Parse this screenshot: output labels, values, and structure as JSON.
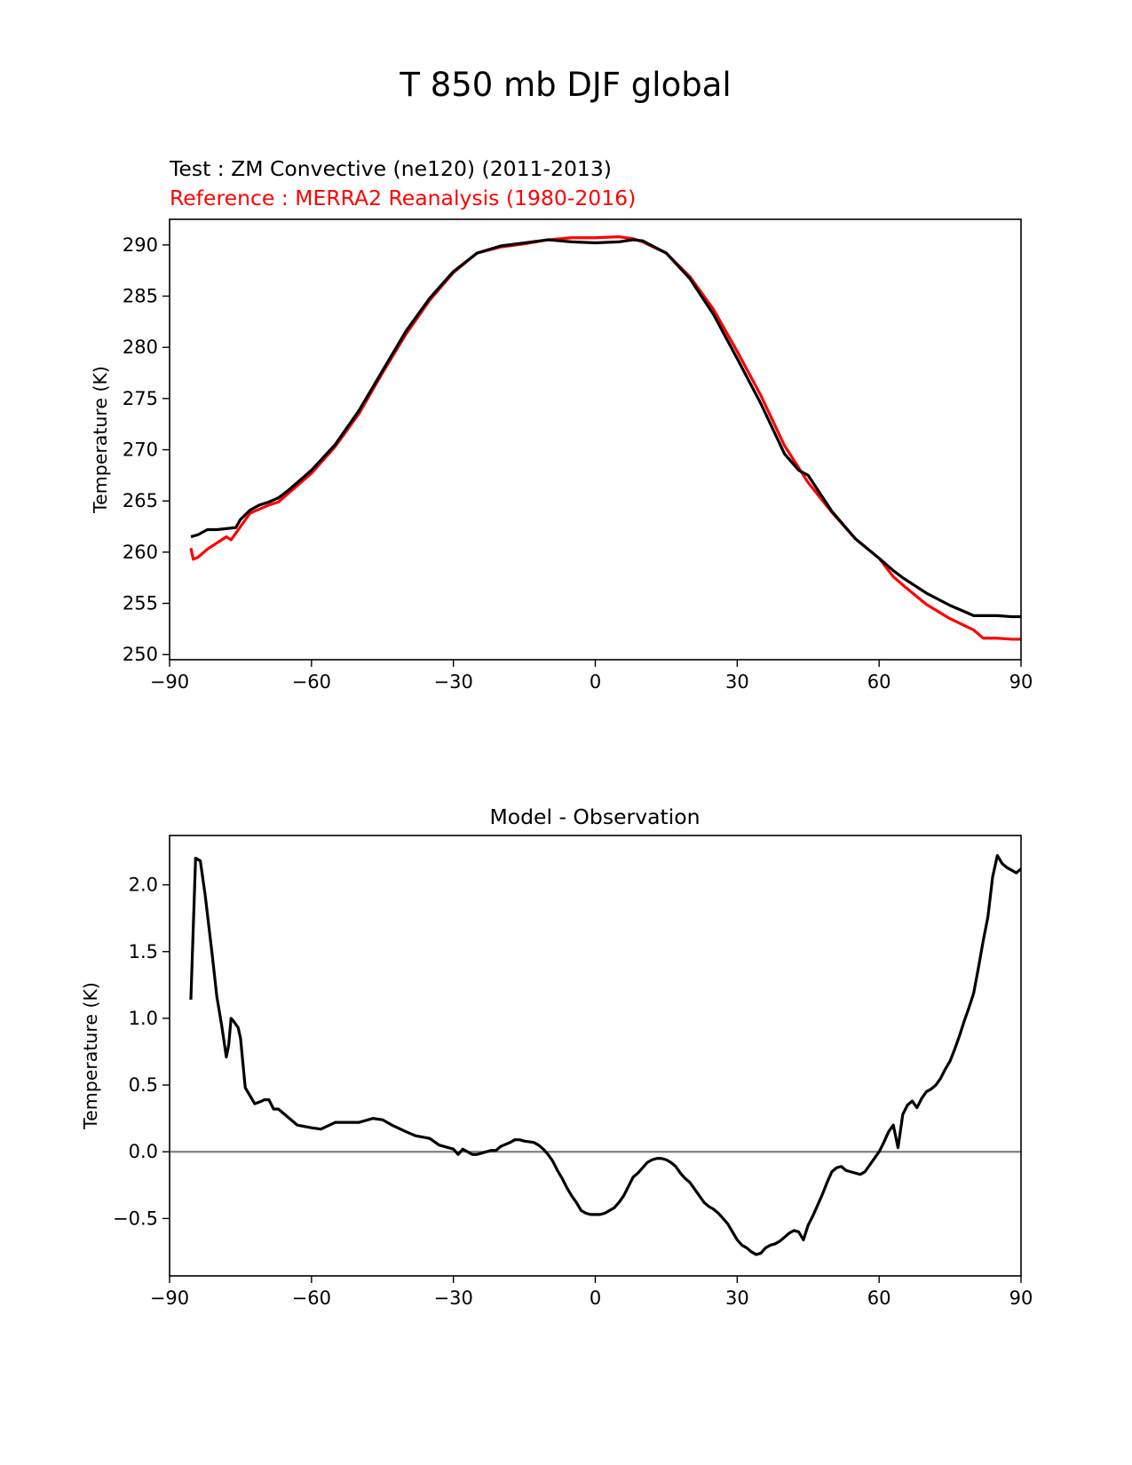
{
  "figure": {
    "suptitle": "T 850 mb DJF global"
  },
  "chart_data": [
    {
      "type": "line",
      "title_test": "Test : ZM Convective (ne120) (2011-2013)",
      "title_reference": "Reference : MERRA2 Reanalysis (1980-2016)",
      "xlabel": "",
      "ylabel": "Temperature (K)",
      "xlim": [
        -90,
        90
      ],
      "ylim": [
        249.5,
        292.5
      ],
      "xticks": [
        -90,
        -60,
        -30,
        0,
        30,
        60,
        90
      ],
      "xtick_labels": [
        "−90",
        "−60",
        "−30",
        "0",
        "30",
        "60",
        "90"
      ],
      "yticks": [
        250,
        255,
        260,
        265,
        270,
        275,
        280,
        285,
        290
      ],
      "ytick_labels": [
        "250",
        "255",
        "260",
        "265",
        "270",
        "275",
        "280",
        "285",
        "290"
      ],
      "series": [
        {
          "name": "Test",
          "color": "#000000",
          "x": [
            -85.5,
            -84,
            -82,
            -80,
            -78,
            -76,
            -75,
            -73,
            -71,
            -69,
            -67,
            -65,
            -60,
            -55,
            -50,
            -45,
            -40,
            -35,
            -30,
            -25,
            -20,
            -15,
            -10,
            -5,
            0,
            5,
            8,
            10,
            15,
            20,
            25,
            30,
            35,
            40,
            43,
            45,
            50,
            55,
            60,
            63,
            65,
            70,
            75,
            80,
            82,
            85,
            88,
            90
          ],
          "y": [
            261.5,
            261.7,
            262.2,
            262.2,
            262.3,
            262.4,
            263.2,
            264.1,
            264.6,
            264.9,
            265.3,
            266.0,
            268.0,
            270.5,
            273.8,
            277.7,
            281.6,
            284.8,
            287.4,
            289.2,
            289.9,
            290.2,
            290.5,
            290.3,
            290.2,
            290.3,
            290.5,
            290.4,
            289.2,
            286.7,
            283.2,
            278.9,
            274.5,
            269.6,
            268.0,
            267.5,
            264.0,
            261.3,
            259.4,
            258.2,
            257.5,
            256.0,
            254.8,
            253.8,
            253.8,
            253.8,
            253.7,
            253.7
          ]
        },
        {
          "name": "Reference",
          "color": "#ff0000",
          "x": [
            -85.5,
            -85,
            -84,
            -82,
            -80,
            -78,
            -77,
            -75,
            -73,
            -71,
            -69,
            -67,
            -65,
            -60,
            -55,
            -50,
            -45,
            -40,
            -35,
            -30,
            -25,
            -20,
            -15,
            -10,
            -5,
            0,
            5,
            8,
            10,
            15,
            20,
            25,
            30,
            35,
            40,
            45,
            50,
            55,
            60,
            63,
            65,
            70,
            75,
            80,
            82,
            85,
            88,
            90
          ],
          "y": [
            260.4,
            259.3,
            259.5,
            260.3,
            260.9,
            261.5,
            261.2,
            262.5,
            263.8,
            264.2,
            264.6,
            264.9,
            265.7,
            267.7,
            270.3,
            273.5,
            277.5,
            281.3,
            284.6,
            287.3,
            289.2,
            289.8,
            290.1,
            290.5,
            290.7,
            290.7,
            290.8,
            290.6,
            290.3,
            289.2,
            286.9,
            283.7,
            279.6,
            275.3,
            270.4,
            266.8,
            263.9,
            261.3,
            259.4,
            257.6,
            256.8,
            254.9,
            253.5,
            252.4,
            251.6,
            251.6,
            251.5,
            251.5
          ]
        }
      ]
    },
    {
      "type": "line",
      "title": "Model - Observation",
      "xlabel": "",
      "ylabel": "Temperature (K)",
      "xlim": [
        -90,
        90
      ],
      "ylim": [
        -0.93,
        2.37
      ],
      "xticks": [
        -90,
        -60,
        -30,
        0,
        30,
        60,
        90
      ],
      "xtick_labels": [
        "−90",
        "−60",
        "−30",
        "0",
        "30",
        "60",
        "90"
      ],
      "yticks": [
        -0.5,
        0.0,
        0.5,
        1.0,
        1.5,
        2.0
      ],
      "ytick_labels": [
        "−0.5",
        "0.0",
        "0.5",
        "1.0",
        "1.5",
        "2.0"
      ],
      "zero_line": {
        "y": 0,
        "color": "#808080"
      },
      "series": [
        {
          "name": "Model - Observation",
          "color": "#000000",
          "x": [
            -85.5,
            -84.5,
            -83.5,
            -82.5,
            -81,
            -80,
            -79,
            -78,
            -77.5,
            -77,
            -76.5,
            -75.5,
            -75,
            -74,
            -72,
            -70.5,
            -70,
            -69,
            -68,
            -67,
            -65,
            -63,
            -60,
            -58,
            -55,
            -53,
            -50,
            -47,
            -45,
            -43,
            -40,
            -38,
            -35,
            -33,
            -31,
            -30,
            -29,
            -28,
            -27,
            -26,
            -25,
            -23,
            -22,
            -21,
            -20,
            -18,
            -17,
            -16,
            -15,
            -13,
            -12,
            -11,
            -10,
            -9,
            -8,
            -7,
            -6,
            -5,
            -4,
            -3,
            -2,
            -1,
            0,
            1,
            2,
            3,
            4,
            5,
            6,
            7,
            8,
            9,
            10,
            11,
            12,
            13,
            14,
            15,
            16,
            17,
            18,
            19,
            20,
            21,
            22,
            23,
            24,
            25,
            26,
            27,
            28,
            29,
            30,
            31,
            32,
            33,
            34,
            35,
            36,
            37,
            38,
            39,
            40,
            41,
            42,
            43,
            44,
            45,
            46,
            47,
            48,
            49,
            50,
            51,
            52,
            53,
            54,
            55,
            56,
            57,
            58,
            59,
            60,
            61,
            62,
            63,
            64,
            65,
            66,
            67,
            68,
            69,
            70,
            71,
            72,
            73,
            74,
            75,
            76,
            77,
            78,
            79,
            80,
            81,
            82,
            83,
            84,
            85,
            86,
            87,
            88,
            89,
            90
          ],
          "y": [
            1.14,
            2.2,
            2.18,
            1.93,
            1.48,
            1.16,
            0.95,
            0.71,
            0.8,
            1.0,
            0.98,
            0.93,
            0.85,
            0.48,
            0.36,
            0.38,
            0.39,
            0.39,
            0.32,
            0.32,
            0.26,
            0.2,
            0.18,
            0.17,
            0.22,
            0.22,
            0.22,
            0.25,
            0.24,
            0.2,
            0.15,
            0.12,
            0.1,
            0.05,
            0.03,
            0.02,
            -0.02,
            0.02,
            0.0,
            -0.02,
            -0.02,
            0.0,
            0.01,
            0.01,
            0.04,
            0.07,
            0.09,
            0.09,
            0.08,
            0.07,
            0.05,
            0.02,
            -0.02,
            -0.07,
            -0.14,
            -0.2,
            -0.27,
            -0.33,
            -0.38,
            -0.44,
            -0.46,
            -0.47,
            -0.47,
            -0.47,
            -0.46,
            -0.44,
            -0.42,
            -0.38,
            -0.33,
            -0.26,
            -0.19,
            -0.16,
            -0.12,
            -0.08,
            -0.06,
            -0.05,
            -0.05,
            -0.06,
            -0.08,
            -0.11,
            -0.16,
            -0.2,
            -0.23,
            -0.28,
            -0.33,
            -0.38,
            -0.41,
            -0.43,
            -0.46,
            -0.5,
            -0.54,
            -0.6,
            -0.66,
            -0.7,
            -0.72,
            -0.75,
            -0.77,
            -0.76,
            -0.72,
            -0.7,
            -0.69,
            -0.67,
            -0.64,
            -0.61,
            -0.59,
            -0.6,
            -0.66,
            -0.55,
            -0.48,
            -0.4,
            -0.32,
            -0.23,
            -0.15,
            -0.12,
            -0.11,
            -0.14,
            -0.15,
            -0.16,
            -0.17,
            -0.15,
            -0.1,
            -0.05,
            0.0,
            0.07,
            0.15,
            0.2,
            0.03,
            0.28,
            0.35,
            0.38,
            0.33,
            0.4,
            0.45,
            0.47,
            0.5,
            0.55,
            0.62,
            0.68,
            0.77,
            0.87,
            0.98,
            1.08,
            1.19,
            1.38,
            1.58,
            1.76,
            2.06,
            2.22,
            2.16,
            2.13,
            2.11,
            2.09,
            2.12
          ]
        }
      ]
    }
  ]
}
